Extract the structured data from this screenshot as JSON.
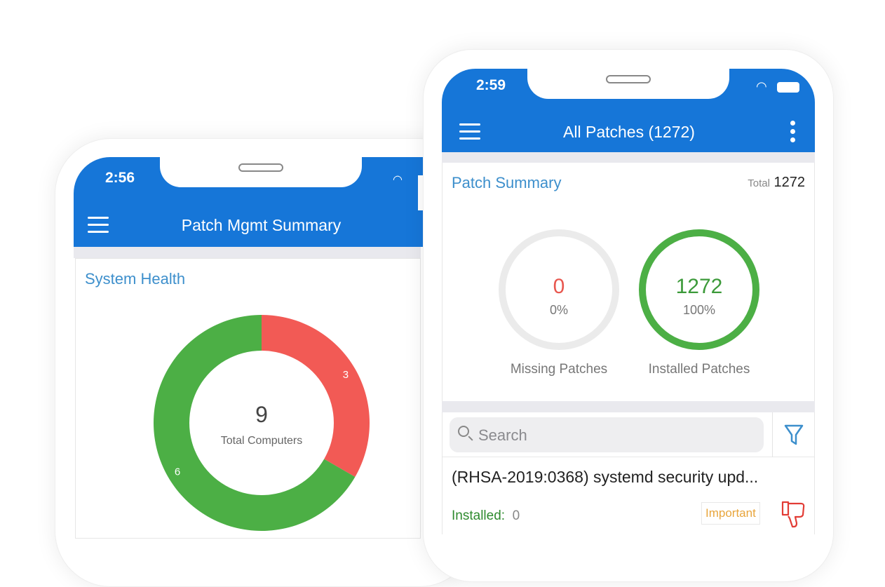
{
  "back_phone": {
    "status_time": "2:56",
    "title": "Patch Mgmt Summary",
    "card_title": "System Health",
    "center_value": "9",
    "center_label": "Total Computers"
  },
  "chart_data": {
    "type": "pie",
    "categories": [
      "Red",
      "Green"
    ],
    "values": [
      3,
      6
    ],
    "colors": [
      "#f25a55",
      "#4caf45"
    ],
    "total": 9
  },
  "front_phone": {
    "status_time": "2:59",
    "title": "All Patches (1272)",
    "summary": {
      "title": "Patch Summary",
      "total_label": "Total",
      "total_value": "1272",
      "missing": {
        "value": "0",
        "percent": "0%",
        "label": "Missing Patches",
        "fraction": 0,
        "color": "#e8574f"
      },
      "installed": {
        "value": "1272",
        "percent": "100%",
        "label": "Installed Patches",
        "fraction": 1,
        "color": "#4caf45"
      }
    },
    "search": {
      "placeholder": "Search"
    },
    "patches": [
      {
        "name": "(RHSA-2019:0368) systemd security upd...",
        "installed_label": "Installed:",
        "installed_value": "0",
        "severity": "Important",
        "severity_color": "#e8a53c"
      }
    ]
  },
  "colors": {
    "brand": "#1676d8",
    "accent_text": "#3d8fcc"
  }
}
